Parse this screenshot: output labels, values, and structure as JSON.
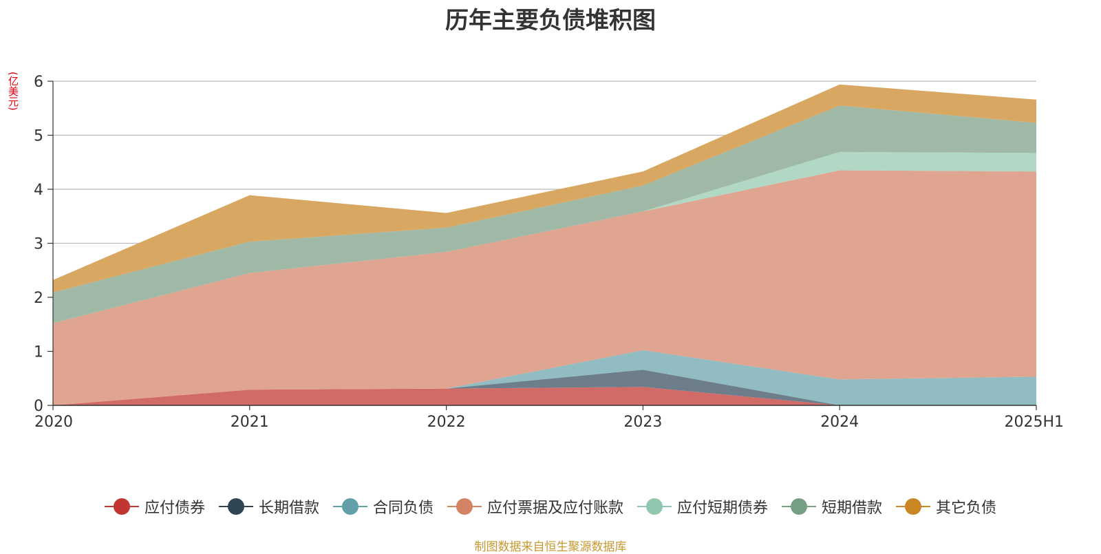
{
  "source_note": "制图数据来自恒生聚源数据库",
  "chart_data": {
    "type": "area",
    "stacked": true,
    "title": "历年主要负债堆积图",
    "unit": "(亿美元)",
    "xlabel": "",
    "ylabel": "",
    "categories": [
      "2020",
      "2021",
      "2022",
      "2023",
      "2024",
      "2025H1"
    ],
    "ylim": [
      0,
      6
    ],
    "yticks": [
      0,
      1,
      2,
      3,
      4,
      5,
      6
    ],
    "grid": true,
    "legend_position": "bottom",
    "series": [
      {
        "name": "应付债券",
        "color": "#c23531",
        "fill": "#d26a68",
        "values": [
          0.0,
          0.29,
          0.31,
          0.34,
          0.0,
          0.0
        ]
      },
      {
        "name": "长期借款",
        "color": "#2f4554",
        "fill": "#6d7e8a",
        "values": [
          0.0,
          0.0,
          0.0,
          0.32,
          0.0,
          0.0
        ]
      },
      {
        "name": "合同负债",
        "color": "#61a0a8",
        "fill": "#90bcc2",
        "values": [
          0.0,
          0.0,
          0.0,
          0.36,
          0.48,
          0.53
        ]
      },
      {
        "name": "应付票据及应付账款",
        "color": "#d48265",
        "fill": "#e0a590",
        "values": [
          1.52,
          2.16,
          2.53,
          2.57,
          3.87,
          3.8
        ]
      },
      {
        "name": "应付短期债券",
        "color": "#91c7ae",
        "fill": "#b0d8c5",
        "values": [
          0.0,
          0.0,
          0.0,
          0.0,
          0.34,
          0.34
        ]
      },
      {
        "name": "短期借款",
        "color": "#749f83",
        "fill": "#9fb9a6",
        "values": [
          0.57,
          0.58,
          0.45,
          0.48,
          0.86,
          0.56
        ]
      },
      {
        "name": "其它负债",
        "color": "#ca8622",
        "fill": "#d8a863",
        "values": [
          0.23,
          0.86,
          0.27,
          0.26,
          0.39,
          0.43
        ]
      }
    ]
  }
}
